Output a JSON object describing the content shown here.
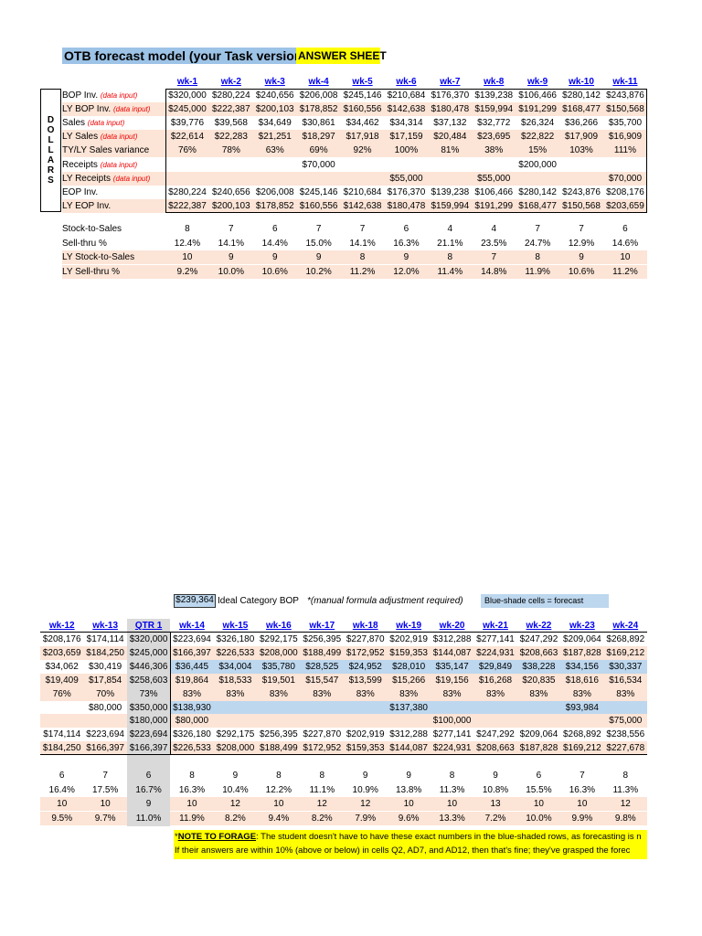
{
  "title": "OTB forecast model  (your Task version)",
  "answer_label": "ANSWER SHEET",
  "dollars_label": [
    "D",
    "O",
    "L",
    "L",
    "A",
    "R",
    "S"
  ],
  "data_input_tag": "(data input)",
  "colors": {
    "pink": "#fce4d6",
    "blue": "#bdd7ee",
    "gray": "#d9d9d9",
    "highlight": "#ffff00",
    "link": "#0000ee"
  },
  "top": {
    "headers": [
      "wk-1",
      "wk-2",
      "wk-3",
      "wk-4",
      "wk-5",
      "wk-6",
      "wk-7",
      "wk-8",
      "wk-9",
      "wk-10",
      "wk-11"
    ],
    "rows": [
      {
        "label": "BOP Inv.",
        "input": true,
        "pink": false,
        "values": [
          "$320,000",
          "$280,224",
          "$240,656",
          "$206,008",
          "$245,146",
          "$210,684",
          "$176,370",
          "$139,238",
          "$106,466",
          "$280,142",
          "$243,876"
        ]
      },
      {
        "label": "LY BOP Inv.",
        "input": true,
        "pink": true,
        "values": [
          "$245,000",
          "$222,387",
          "$200,103",
          "$178,852",
          "$160,556",
          "$142,638",
          "$180,478",
          "$159,994",
          "$191,299",
          "$168,477",
          "$150,568"
        ]
      },
      {
        "label": "Sales",
        "input": true,
        "pink": false,
        "values": [
          "$39,776",
          "$39,568",
          "$34,649",
          "$30,861",
          "$34,462",
          "$34,314",
          "$37,132",
          "$32,772",
          "$26,324",
          "$36,266",
          "$35,700"
        ]
      },
      {
        "label": "LY Sales",
        "input": true,
        "pink": true,
        "values": [
          "$22,614",
          "$22,283",
          "$21,251",
          "$18,297",
          "$17,918",
          "$17,159",
          "$20,484",
          "$23,695",
          "$22,822",
          "$17,909",
          "$16,909"
        ]
      },
      {
        "label": "TY/LY Sales variance",
        "input": false,
        "pink": true,
        "values": [
          "76%",
          "78%",
          "63%",
          "69%",
          "92%",
          "100%",
          "81%",
          "38%",
          "15%",
          "103%",
          "111%"
        ]
      },
      {
        "label": "Receipts",
        "input": true,
        "pink": false,
        "values": [
          "",
          "",
          "",
          "$70,000",
          "",
          "",
          "",
          "",
          "$200,000",
          "",
          ""
        ]
      },
      {
        "label": "LY Receipts",
        "input": true,
        "pink": true,
        "values": [
          "",
          "",
          "",
          "",
          "",
          "$55,000",
          "",
          "$55,000",
          "",
          "",
          "$70,000"
        ]
      },
      {
        "label": "EOP Inv.",
        "input": false,
        "pink": false,
        "values": [
          "$280,224",
          "$240,656",
          "$206,008",
          "$245,146",
          "$210,684",
          "$176,370",
          "$139,238",
          "$106,466",
          "$280,142",
          "$243,876",
          "$208,176"
        ]
      },
      {
        "label": "LY EOP Inv.",
        "input": false,
        "pink": true,
        "values": [
          "$222,387",
          "$200,103",
          "$178,852",
          "$160,556",
          "$142,638",
          "$180,478",
          "$159,994",
          "$191,299",
          "$168,477",
          "$150,568",
          "$203,659"
        ]
      }
    ],
    "stats": [
      {
        "label": "Stock-to-Sales",
        "pink": false,
        "values": [
          "8",
          "7",
          "6",
          "7",
          "7",
          "6",
          "4",
          "4",
          "7",
          "7",
          "6"
        ]
      },
      {
        "label": "Sell-thru %",
        "pink": false,
        "values": [
          "12.4%",
          "14.1%",
          "14.4%",
          "15.0%",
          "14.1%",
          "16.3%",
          "21.1%",
          "23.5%",
          "24.7%",
          "12.9%",
          "14.6%"
        ]
      },
      {
        "label": "LY Stock-to-Sales",
        "pink": true,
        "values": [
          "10",
          "9",
          "9",
          "9",
          "8",
          "9",
          "8",
          "7",
          "8",
          "9",
          "10"
        ]
      },
      {
        "label": "LY Sell-thru %",
        "pink": true,
        "values": [
          "9.2%",
          "10.0%",
          "10.6%",
          "10.2%",
          "11.2%",
          "12.0%",
          "11.4%",
          "14.8%",
          "11.9%",
          "10.6%",
          "11.2%"
        ]
      }
    ]
  },
  "ideal": {
    "value": "$239,364",
    "label": "Ideal Category BOP",
    "note": "*(manual formula adjustment required)"
  },
  "legend": "Blue-shade cells = forecast",
  "bottom": {
    "headers": [
      "wk-12",
      "wk-13",
      "QTR 1",
      "wk-14",
      "wk-15",
      "wk-16",
      "wk-17",
      "wk-18",
      "wk-19",
      "wk-20",
      "wk-21",
      "wk-22",
      "wk-23",
      "wk-24"
    ],
    "quarter_col": 2,
    "rows": [
      {
        "pink": false,
        "blue": false,
        "values": [
          "$208,176",
          "$174,114",
          "$320,000",
          "$223,694",
          "$326,180",
          "$292,175",
          "$256,395",
          "$227,870",
          "$202,919",
          "$312,288",
          "$277,141",
          "$247,292",
          "$209,064",
          "$268,892"
        ]
      },
      {
        "pink": true,
        "blue": false,
        "values": [
          "$203,659",
          "$184,250",
          "$245,000",
          "$166,397",
          "$226,533",
          "$208,000",
          "$188,499",
          "$172,952",
          "$159,353",
          "$144,087",
          "$224,931",
          "$208,663",
          "$187,828",
          "$169,212"
        ]
      },
      {
        "pink": false,
        "blue": true,
        "values": [
          "$34,062",
          "$30,419",
          "$446,306",
          "$36,445",
          "$34,004",
          "$35,780",
          "$28,525",
          "$24,952",
          "$28,010",
          "$35,147",
          "$29,849",
          "$38,228",
          "$34,156",
          "$30,337"
        ]
      },
      {
        "pink": true,
        "blue": false,
        "values": [
          "$19,409",
          "$17,854",
          "$258,603",
          "$19,864",
          "$18,533",
          "$19,501",
          "$15,547",
          "$13,599",
          "$15,266",
          "$19,156",
          "$16,268",
          "$20,835",
          "$18,616",
          "$16,534"
        ]
      },
      {
        "pink": true,
        "blue": false,
        "values": [
          "76%",
          "70%",
          "73%",
          "83%",
          "83%",
          "83%",
          "83%",
          "83%",
          "83%",
          "83%",
          "83%",
          "83%",
          "83%",
          "83%"
        ]
      },
      {
        "pink": false,
        "blue": true,
        "values": [
          "",
          "$80,000",
          "$350,000",
          "$138,930",
          "",
          "",
          "",
          "",
          "$137,380",
          "",
          "",
          "",
          "$93,984",
          ""
        ]
      },
      {
        "pink": true,
        "blue": false,
        "values": [
          "",
          "",
          "$180,000",
          "$80,000",
          "",
          "",
          "",
          "",
          "",
          "$100,000",
          "",
          "",
          "",
          "$75,000"
        ]
      },
      {
        "pink": false,
        "blue": false,
        "values": [
          "$174,114",
          "$223,694",
          "$223,694",
          "$326,180",
          "$292,175",
          "$256,395",
          "$227,870",
          "$202,919",
          "$312,288",
          "$277,141",
          "$247,292",
          "$209,064",
          "$268,892",
          "$238,556"
        ]
      },
      {
        "pink": true,
        "blue": false,
        "values": [
          "$184,250",
          "$166,397",
          "$166,397",
          "$226,533",
          "$208,000",
          "$188,499",
          "$172,952",
          "$159,353",
          "$144,087",
          "$224,931",
          "$208,663",
          "$187,828",
          "$169,212",
          "$227,678"
        ]
      }
    ],
    "stats": [
      {
        "pink": false,
        "values": [
          "6",
          "7",
          "6",
          "8",
          "9",
          "8",
          "8",
          "9",
          "9",
          "8",
          "9",
          "6",
          "7",
          "8"
        ]
      },
      {
        "pink": false,
        "values": [
          "16.4%",
          "17.5%",
          "16.7%",
          "16.3%",
          "10.4%",
          "12.2%",
          "11.1%",
          "10.9%",
          "13.8%",
          "11.3%",
          "10.8%",
          "15.5%",
          "16.3%",
          "11.3%"
        ]
      },
      {
        "pink": true,
        "values": [
          "10",
          "10",
          "9",
          "10",
          "12",
          "10",
          "12",
          "12",
          "10",
          "10",
          "13",
          "10",
          "10",
          "12"
        ]
      },
      {
        "pink": true,
        "values": [
          "9.5%",
          "9.7%",
          "11.0%",
          "11.9%",
          "8.2%",
          "9.4%",
          "8.2%",
          "7.9%",
          "9.6%",
          "13.3%",
          "7.2%",
          "10.0%",
          "9.9%",
          "9.8%"
        ]
      }
    ]
  },
  "note": {
    "prefix": "*",
    "heading": "NOTE TO FORAGE",
    "line1": ": The student doesn't have to have these exact numbers in the blue-shaded rows, as forecasting is n",
    "line2": "If their answers are within 10% (above or below) in cells Q2, AD7, and AD12, then that's fine; they've grasped the forec"
  }
}
